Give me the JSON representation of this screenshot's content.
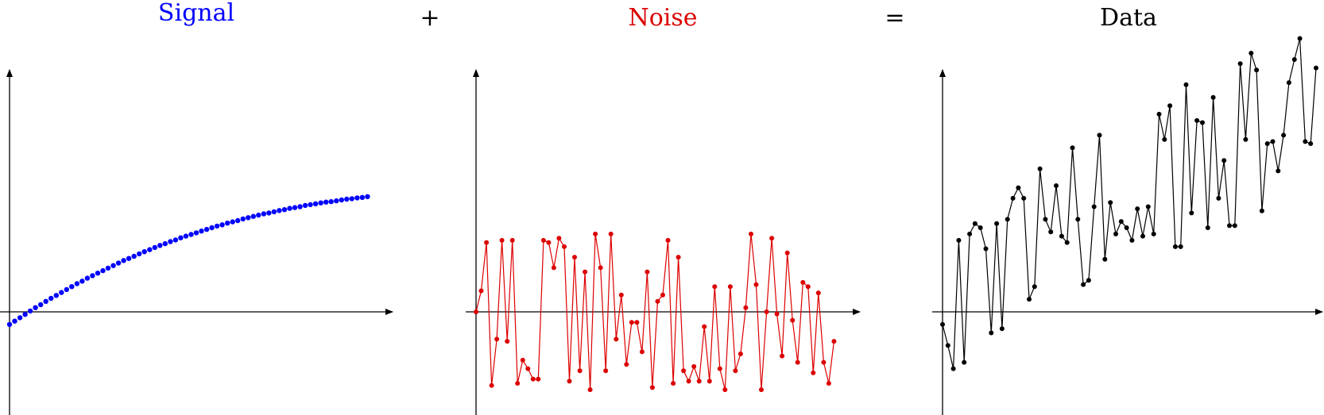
{
  "labels": {
    "signal": "Signal",
    "plus": "+",
    "noise": "Noise",
    "equals": "=",
    "data": "Data"
  },
  "colors": {
    "signal": "#0000ff",
    "noise": "#dd0000",
    "data": "#000000",
    "operator": "#000000"
  },
  "chart_data": [
    {
      "type": "scatter",
      "title": "Signal",
      "x": [
        0,
        1,
        2,
        3,
        4,
        5,
        6,
        7,
        8,
        9,
        10,
        11,
        12,
        13,
        14,
        15,
        16,
        17,
        18,
        19,
        20,
        21,
        22,
        23,
        24,
        25,
        26,
        27,
        28,
        29,
        30,
        31,
        32,
        33,
        34,
        35,
        36,
        37,
        38,
        39,
        40,
        41,
        42,
        43,
        44,
        45,
        46,
        47,
        48,
        49,
        50,
        51,
        52,
        53,
        54,
        55,
        56,
        57,
        58,
        59,
        60,
        61,
        62,
        63,
        64,
        65,
        66,
        67,
        68,
        69
      ],
      "y": [
        -0.3,
        -0.22,
        -0.14,
        -0.06,
        0.02,
        0.1,
        0.17,
        0.25,
        0.32,
        0.39,
        0.46,
        0.53,
        0.6,
        0.67,
        0.73,
        0.8,
        0.86,
        0.92,
        0.98,
        1.04,
        1.1,
        1.16,
        1.22,
        1.27,
        1.32,
        1.38,
        1.43,
        1.48,
        1.53,
        1.58,
        1.62,
        1.67,
        1.71,
        1.76,
        1.8,
        1.84,
        1.88,
        1.92,
        1.96,
        2.0,
        2.04,
        2.07,
        2.11,
        2.14,
        2.17,
        2.21,
        2.24,
        2.27,
        2.3,
        2.33,
        2.35,
        2.38,
        2.41,
        2.43,
        2.46,
        2.48,
        2.5,
        2.53,
        2.55,
        2.57,
        2.59,
        2.61,
        2.62,
        2.64,
        2.66,
        2.68,
        2.69,
        2.71,
        2.72,
        2.74
      ],
      "xlim": [
        0,
        72
      ],
      "ylim": [
        -2.6,
        6.2
      ],
      "color": "#0000ff"
    },
    {
      "type": "line",
      "title": "Noise",
      "x": [
        0,
        1,
        2,
        3,
        4,
        5,
        6,
        7,
        8,
        9,
        10,
        11,
        12,
        13,
        14,
        15,
        16,
        17,
        18,
        19,
        20,
        21,
        22,
        23,
        24,
        25,
        26,
        27,
        28,
        29,
        30,
        31,
        32,
        33,
        34,
        35,
        36,
        37,
        38,
        39,
        40,
        41,
        42,
        43,
        44,
        45,
        46,
        47,
        48,
        49,
        50,
        51,
        52,
        53,
        54,
        55,
        56,
        57,
        58,
        59,
        60,
        61,
        62,
        63,
        64,
        65,
        66,
        67,
        68,
        69
      ],
      "y": [
        0.0,
        0.5,
        1.65,
        -1.75,
        -0.65,
        1.7,
        -0.7,
        1.7,
        -1.7,
        -1.15,
        -1.35,
        -1.6,
        -1.6,
        1.7,
        1.65,
        1.05,
        1.75,
        1.55,
        -1.65,
        1.3,
        -1.4,
        0.95,
        -1.85,
        1.85,
        1.05,
        -1.4,
        1.85,
        -0.65,
        0.4,
        -1.25,
        -0.25,
        -0.25,
        -0.95,
        0.95,
        -1.8,
        0.25,
        0.4,
        1.7,
        -1.7,
        1.3,
        -1.4,
        -1.65,
        -1.3,
        -1.65,
        -0.35,
        -1.65,
        0.6,
        -1.35,
        -1.85,
        0.6,
        -1.4,
        -1.0,
        0.1,
        1.85,
        0.65,
        -1.85,
        0.0,
        1.75,
        -0.05,
        -1.05,
        1.4,
        -0.2,
        -1.2,
        0.7,
        0.6,
        -1.45,
        0.45,
        -1.2,
        -1.7,
        -0.7
      ],
      "xlim": [
        0,
        72
      ],
      "ylim": [
        -2.6,
        6.2
      ],
      "color": "#dd0000"
    },
    {
      "type": "line",
      "title": "Data",
      "x": [
        0,
        1,
        2,
        3,
        4,
        5,
        6,
        7,
        8,
        9,
        10,
        11,
        12,
        13,
        14,
        15,
        16,
        17,
        18,
        19,
        20,
        21,
        22,
        23,
        24,
        25,
        26,
        27,
        28,
        29,
        30,
        31,
        32,
        33,
        34,
        35,
        36,
        37,
        38,
        39,
        40,
        41,
        42,
        43,
        44,
        45,
        46,
        47,
        48,
        49,
        50,
        51,
        52,
        53,
        54,
        55,
        56,
        57,
        58,
        59,
        60,
        61,
        62,
        63,
        64,
        65,
        66,
        67,
        68,
        69
      ],
      "y": [
        -0.3,
        -0.8,
        -1.35,
        1.7,
        -1.2,
        1.85,
        2.1,
        2.0,
        1.5,
        -0.5,
        2.1,
        -0.4,
        2.2,
        2.7,
        2.95,
        2.7,
        0.3,
        0.6,
        3.4,
        2.2,
        1.9,
        3.0,
        1.8,
        1.65,
        3.9,
        2.2,
        0.65,
        0.75,
        2.5,
        4.2,
        1.25,
        2.6,
        1.85,
        2.15,
        2.0,
        1.7,
        2.45,
        1.8,
        2.5,
        1.85,
        4.7,
        4.1,
        4.9,
        1.55,
        1.55,
        5.4,
        2.35,
        4.55,
        4.5,
        2.0,
        5.1,
        2.7,
        3.6,
        2.05,
        2.05,
        5.9,
        4.1,
        6.15,
        5.75,
        2.4,
        4.0,
        4.05,
        3.35,
        4.2,
        5.45,
        6.0,
        6.5,
        4.05,
        4.0,
        5.8
      ],
      "xlim": [
        0,
        69
      ],
      "ylim": [
        -2.6,
        6.2
      ],
      "color": "#000000"
    }
  ]
}
